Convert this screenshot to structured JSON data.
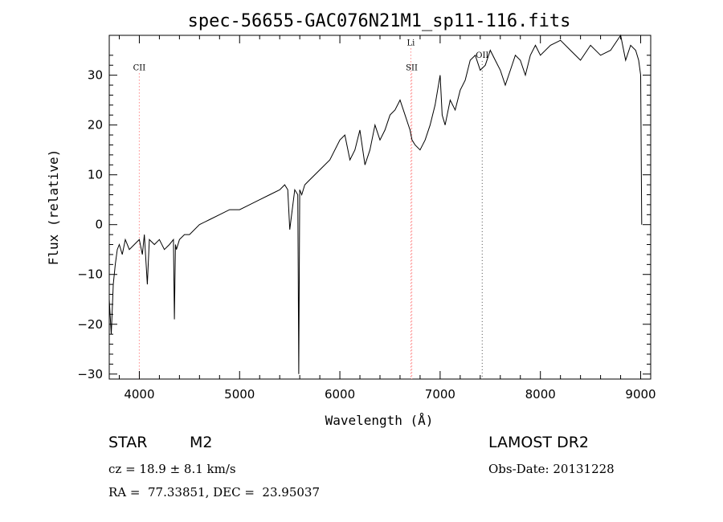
{
  "chart_data": {
    "type": "line",
    "title": "spec-56655-GAC076N21M1_sp11-116.fits",
    "xlabel": "Wavelength (Å)",
    "ylabel": "Flux (relative)",
    "xlim": [
      3700,
      9100
    ],
    "ylim": [
      -31,
      38
    ],
    "xticks": [
      4000,
      5000,
      6000,
      7000,
      8000,
      9000
    ],
    "yticks": [
      -30,
      -20,
      -10,
      0,
      10,
      20,
      30
    ],
    "grid": false,
    "series": [
      {
        "x": [
          3700,
          3720,
          3740,
          3760,
          3780,
          3800,
          3830,
          3860,
          3900,
          3950,
          4000,
          4030,
          4050,
          4080,
          4100,
          4150,
          4200,
          4250,
          4300,
          4340,
          4350,
          4360,
          4370,
          4400,
          4450,
          4500,
          4600,
          4700,
          4800,
          4900,
          5000,
          5100,
          5200,
          5300,
          5400,
          5450,
          5480,
          5500,
          5550,
          5580,
          5590,
          5600,
          5620,
          5650,
          5700,
          5800,
          5900,
          6000,
          6050,
          6100,
          6150,
          6200,
          6250,
          6300,
          6350,
          6400,
          6450,
          6500,
          6550,
          6600,
          6650,
          6700,
          6720,
          6750,
          6800,
          6850,
          6900,
          6950,
          7000,
          7020,
          7050,
          7100,
          7150,
          7200,
          7250,
          7300,
          7350,
          7400,
          7450,
          7500,
          7550,
          7600,
          7650,
          7700,
          7750,
          7800,
          7850,
          7900,
          7950,
          8000,
          8100,
          8200,
          8300,
          8400,
          8500,
          8600,
          8700,
          8800,
          8850,
          8900,
          8950,
          8980,
          9000,
          9010
        ],
        "y": [
          -15,
          -22,
          -12,
          -8,
          -5,
          -4,
          -6,
          -3,
          -5,
          -4,
          -3,
          -6,
          -2,
          -12,
          -3,
          -4,
          -3,
          -5,
          -4,
          -3,
          -19,
          -4,
          -5,
          -3,
          -2,
          -2,
          0,
          1,
          2,
          3,
          3,
          4,
          5,
          6,
          7,
          8,
          7,
          -1,
          7,
          6,
          -30,
          7,
          6,
          8,
          9,
          11,
          13,
          17,
          18,
          13,
          15,
          19,
          12,
          15,
          20,
          17,
          19,
          22,
          23,
          25,
          22,
          19,
          17,
          16,
          15,
          17,
          20,
          24,
          30,
          22,
          20,
          25,
          23,
          27,
          29,
          33,
          34,
          31,
          32,
          35,
          33,
          31,
          28,
          31,
          34,
          33,
          30,
          34,
          36,
          34,
          36,
          37,
          35,
          33,
          36,
          34,
          35,
          38,
          33,
          36,
          35,
          33,
          30,
          0
        ]
      }
    ],
    "line_markers": [
      {
        "label": "CII",
        "x": 4000,
        "color": "#ff6666"
      },
      {
        "label": "Li",
        "x": 6708,
        "color": "#ff6666"
      },
      {
        "label": "SII",
        "x": 6717,
        "color": "#ff6666"
      },
      {
        "label": "OII",
        "x": 7420,
        "color": "#666666"
      }
    ]
  },
  "info": {
    "object_class": "STAR",
    "subclass": "M2",
    "cz": "cz = 18.9 ± 8.1 km/s",
    "coords": "RA =  77.33851, DEC =  23.95037",
    "survey": "LAMOST DR2",
    "obs_date": "Obs-Date: 20131228"
  }
}
